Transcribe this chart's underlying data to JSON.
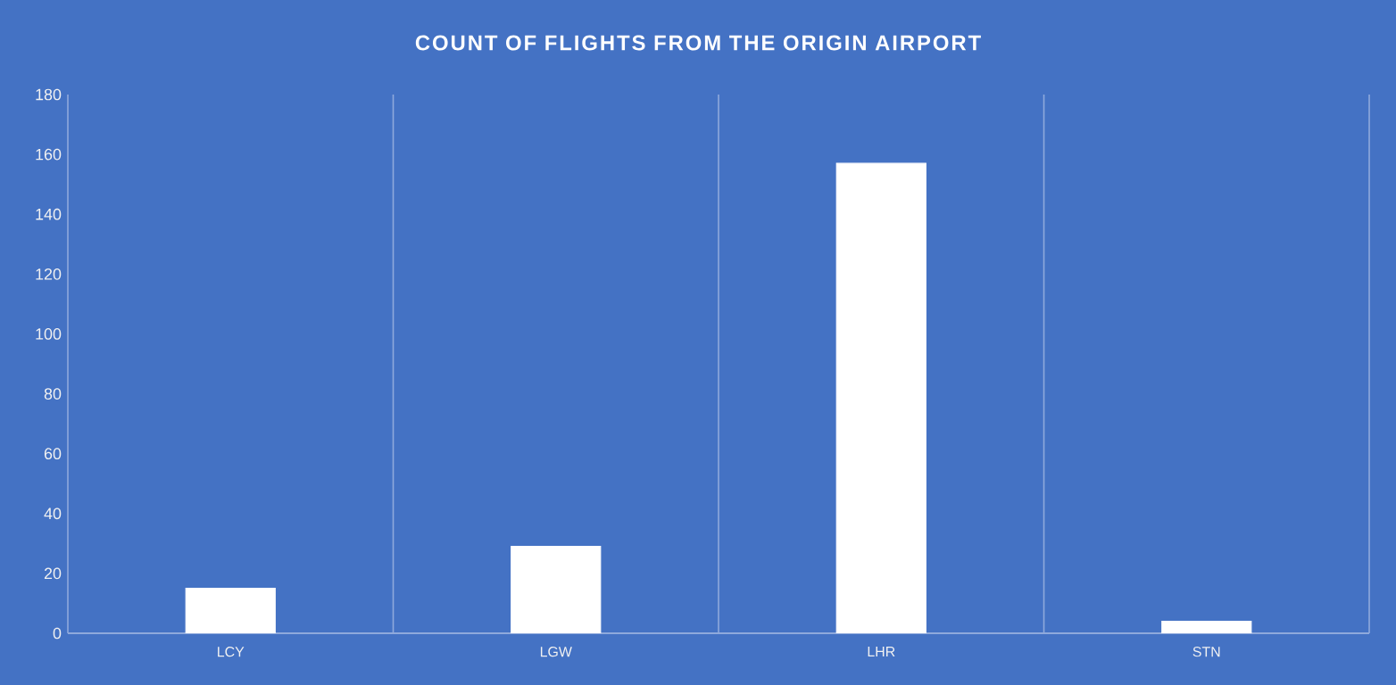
{
  "chart_data": {
    "type": "bar",
    "title": "COUNT OF FLIGHTS FROM THE ORIGIN AIRPORT",
    "categories": [
      "LCY",
      "LGW",
      "LHR",
      "STN"
    ],
    "values": [
      15,
      29,
      157,
      4
    ],
    "color": "#ffffff",
    "ylim": [
      0,
      180
    ],
    "yticks": [
      0,
      20,
      40,
      60,
      80,
      100,
      120,
      140,
      160,
      180
    ],
    "grid": "x"
  }
}
